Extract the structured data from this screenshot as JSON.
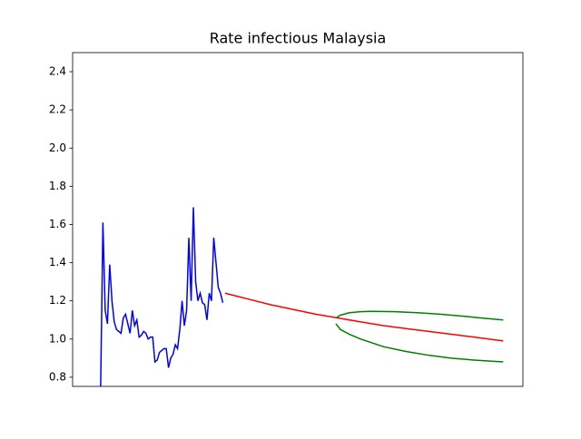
{
  "chart_data": {
    "type": "line",
    "title": "Rate infectious Malaysia",
    "xlim": [
      -12.4,
      186.7
    ],
    "ylim": [
      0.752,
      2.5
    ],
    "yticks": [
      0.8,
      {
        "value": 1.0,
        "label": "1.0"
      },
      1.2,
      1.4,
      1.6,
      1.8,
      {
        "value": 2.0,
        "label": "2.0"
      },
      2.2,
      2.4
    ],
    "series": [
      {
        "color": "#0000ff",
        "x": [
          0,
          1,
          2,
          3,
          4,
          5,
          6,
          7,
          8,
          9,
          10,
          11,
          12,
          13,
          14,
          15,
          16,
          17,
          18,
          19,
          20,
          21,
          22,
          23,
          24,
          25,
          26,
          27,
          28,
          29,
          30,
          31,
          32,
          33,
          34,
          35,
          36,
          37,
          38,
          39,
          40,
          41,
          42,
          43,
          44,
          45,
          46,
          47,
          48,
          49,
          50,
          51,
          52,
          53,
          54
        ],
        "values": [
          0.75,
          1.61,
          1.15,
          1.08,
          1.39,
          1.2,
          1.09,
          1.05,
          1.04,
          1.03,
          1.11,
          1.13,
          1.08,
          1.03,
          1.15,
          1.07,
          1.1,
          1.01,
          1.02,
          1.04,
          1.03,
          1.0,
          1.01,
          1.01,
          0.88,
          0.89,
          0.93,
          0.94,
          0.95,
          0.95,
          0.85,
          0.9,
          0.92,
          0.97,
          0.95,
          1.05,
          1.2,
          1.07,
          1.15,
          1.53,
          1.2,
          1.69,
          1.3,
          1.2,
          1.24,
          1.19,
          1.18,
          1.1,
          1.24,
          1.2,
          1.53,
          1.4,
          1.27,
          1.24,
          1.19
        ]
      },
      {
        "color": "#ff0000",
        "x": [
          55,
          65,
          75,
          85,
          95,
          105,
          115,
          125,
          135,
          145,
          155,
          165,
          178
        ],
        "values": [
          1.24,
          1.21,
          1.18,
          1.155,
          1.13,
          1.11,
          1.09,
          1.07,
          1.055,
          1.04,
          1.025,
          1.01,
          0.99
        ]
      },
      {
        "color": "#008000",
        "x": [
          104,
          106,
          110,
          115,
          120,
          130,
          140,
          150,
          160,
          170,
          178
        ],
        "values": [
          1.11,
          1.125,
          1.138,
          1.143,
          1.145,
          1.143,
          1.138,
          1.13,
          1.12,
          1.108,
          1.1
        ]
      },
      {
        "color": "#008000",
        "x": [
          104,
          106,
          110,
          115,
          125,
          135,
          145,
          155,
          165,
          178
        ],
        "values": [
          1.08,
          1.05,
          1.025,
          1.0,
          0.96,
          0.935,
          0.915,
          0.9,
          0.89,
          0.88
        ]
      }
    ]
  }
}
